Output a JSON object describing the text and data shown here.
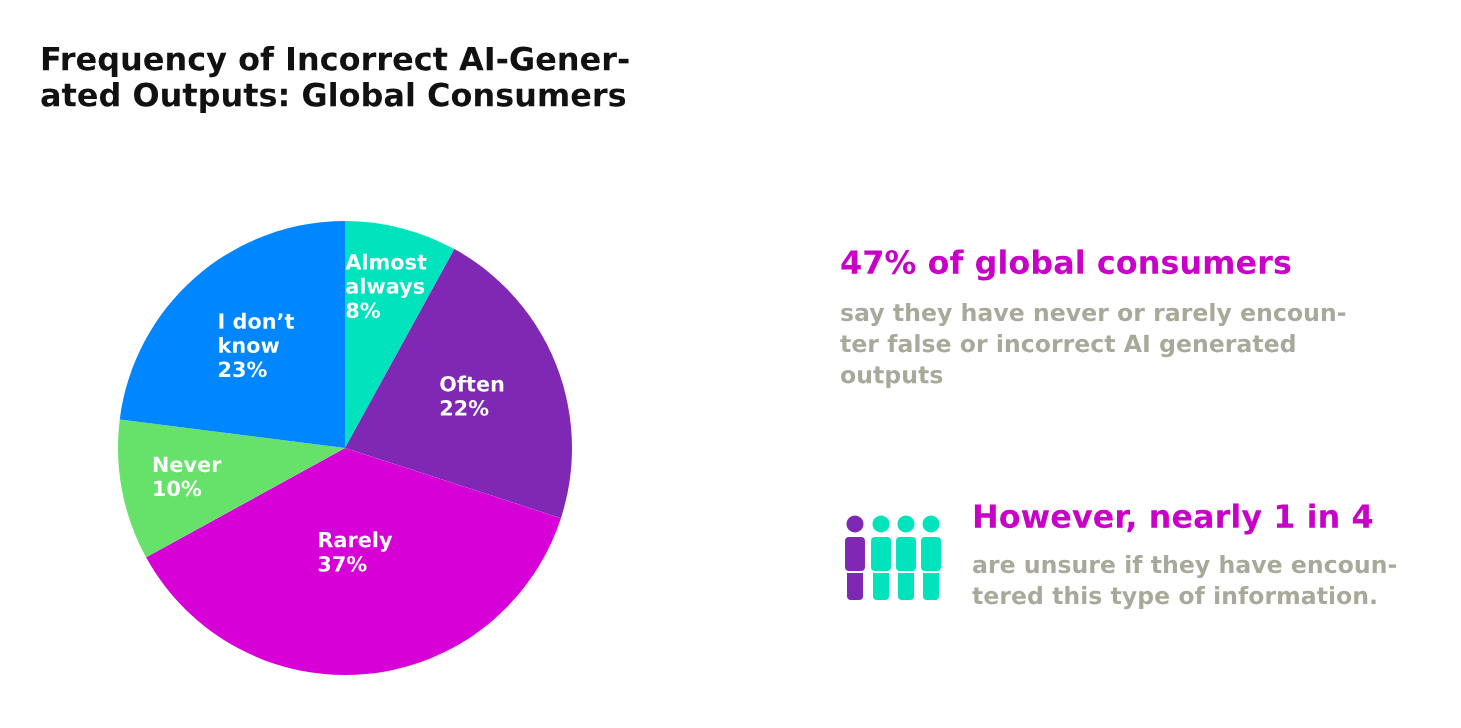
{
  "chart_data": {
    "type": "pie",
    "title": "Frequency of Incorrect AI-Gener-\nated Outputs: Global Consumers",
    "categories": [
      "Almost\nalways",
      "Often",
      "Rarely",
      "Never",
      "I don’t\nknow"
    ],
    "values": [
      8,
      22,
      37,
      10,
      23
    ],
    "value_labels": [
      "8%",
      "22%",
      "37%",
      "10%",
      "23%"
    ],
    "colors": [
      "#00e3bd",
      "#7f28b4",
      "#d700d6",
      "#66e169",
      "#0087ff"
    ],
    "annotations": [
      "47% of global consumers",
      "say they have never or rarely encoun-\nter false or incorrect AI generated\noutputs",
      "However, nearly 1 in 4",
      "are unsure if they have encoun-\ntered this type of information."
    ]
  }
}
